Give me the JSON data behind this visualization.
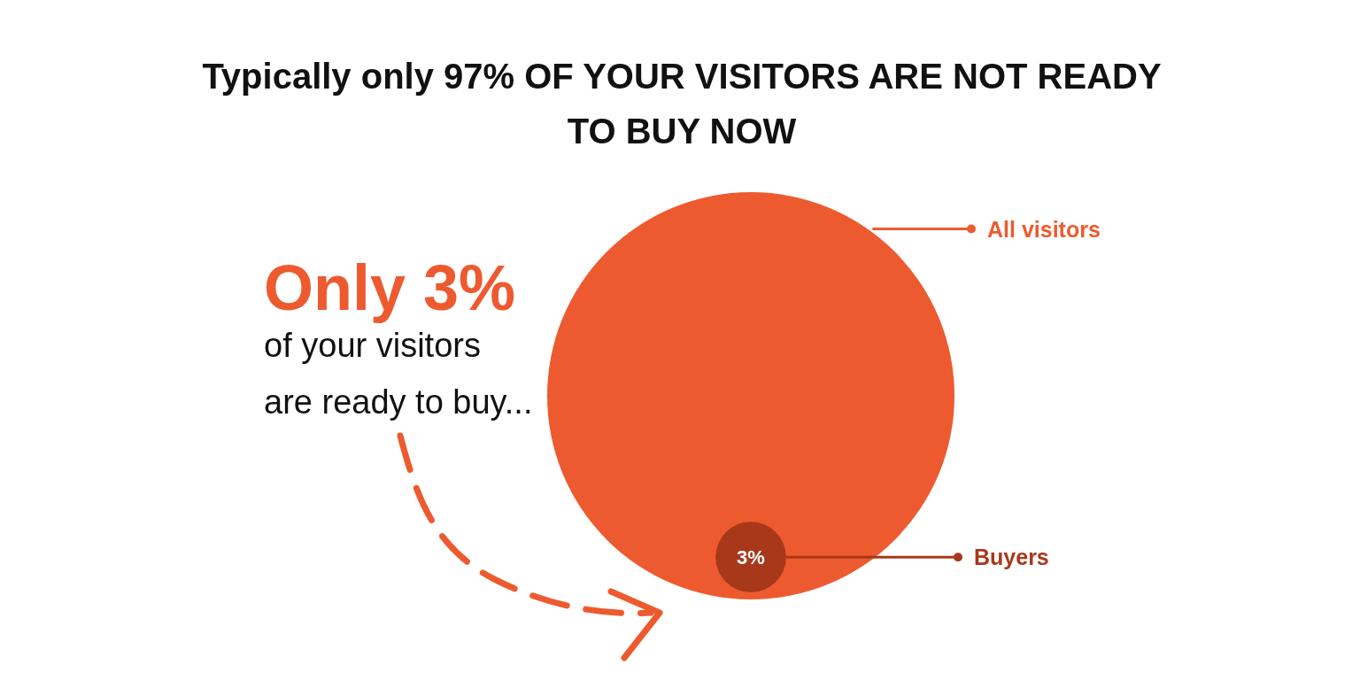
{
  "chart_data": {
    "type": "other",
    "title": "Typically only 97% OF YOUR VISITORS ARE NOT READY TO BUY NOW",
    "categories": [
      "All visitors",
      "Buyers"
    ],
    "values": [
      null,
      3
    ],
    "value_labels": [
      null,
      "3%"
    ],
    "colors": [
      "#ee5a2f",
      "#a8381a"
    ],
    "annotations": [
      "Only 3%",
      "of your visitors",
      "are ready to buy..."
    ]
  }
}
